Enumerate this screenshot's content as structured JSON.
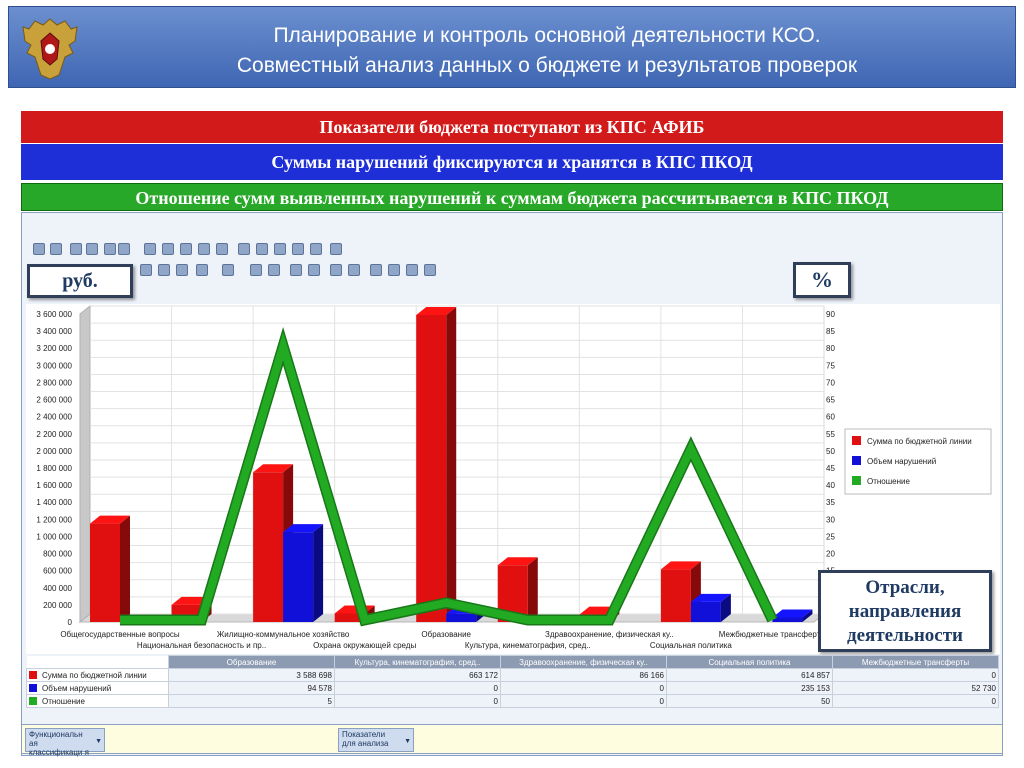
{
  "header": {
    "title_line1": "Планирование и контроль основной деятельности КСО.",
    "title_line2": "Совместный анализ данных о бюджете и результатов проверок"
  },
  "banners": [
    {
      "text": "Показатели бюджета поступают из КПС АФИБ",
      "color": "#d21a1a"
    },
    {
      "text": "Суммы нарушений фиксируются и хранятся в КПС ПКОД",
      "color": "#1f2fd8"
    },
    {
      "text": "Отношение  сумм  выявленных нарушений к суммам бюджета рассчитывается в КПС ПКОД",
      "color": "#28a828"
    }
  ],
  "callouts": {
    "left_axis_unit": "руб.",
    "right_axis_unit": "%",
    "x_axis_note_line1": "Отрасли,",
    "x_axis_note_line2": "направления",
    "x_axis_note_line3": "деятельности"
  },
  "chart_data": {
    "type": "bar",
    "categories": [
      "Общегосударственные вопросы",
      "Национальная безопасность и пр..",
      "Жилищно-коммунальное хозяйство",
      "Охрана окружающей среды",
      "Образование",
      "Культура, кинематография, сред..",
      "Здравоохранение, физическая ку..",
      "Социальная политика",
      "Межбюджетные трансферты"
    ],
    "series": [
      {
        "name": "Сумма по бюджетной линии",
        "axis": "left",
        "type": "bar",
        "color": "#e01010",
        "values": [
          1150000,
          200000,
          1750000,
          100000,
          3588698,
          663172,
          86166,
          614857,
          0
        ]
      },
      {
        "name": "Объем нарушений",
        "axis": "left",
        "type": "bar",
        "color": "#1010d8",
        "values": [
          0,
          0,
          1050000,
          0,
          94578,
          0,
          0,
          235153,
          52730
        ]
      },
      {
        "name": "Отношение",
        "axis": "right",
        "type": "line",
        "color": "#22aa22",
        "values": [
          0,
          0,
          80,
          0,
          5,
          0,
          0,
          50,
          0
        ]
      }
    ],
    "ylim_left": [
      0,
      3600000
    ],
    "ylim_right": [
      0,
      90
    ],
    "left_ticks": [
      "0",
      "200 000",
      "400 000",
      "600 000",
      "800 000",
      "1 000 000",
      "1 200 000",
      "1 400 000",
      "1 600 000",
      "1 800 000",
      "2 000 000",
      "2 200 000",
      "2 400 000",
      "2 600 000",
      "2 800 000",
      "3 000 000",
      "3 200 000",
      "3 400 000",
      "3 600 000"
    ],
    "right_ticks": [
      "15",
      "20",
      "25",
      "30",
      "35",
      "40",
      "45",
      "50",
      "55",
      "60",
      "65",
      "70",
      "75",
      "80",
      "85",
      "90"
    ],
    "legend_position": "right",
    "grid": true
  },
  "table": {
    "columns": [
      "Образование",
      "Культура, кинематография, сред..",
      "Здравоохранение, физическая ку..",
      "Социальная политика",
      "Межбюджетные трансферты"
    ],
    "rows": [
      {
        "label": "Сумма по бюджетной линии",
        "color": "#e01010",
        "values": [
          "3 588 698",
          "663 172",
          "86 166",
          "614 857",
          "0"
        ]
      },
      {
        "label": "Объем нарушений",
        "color": "#1010d8",
        "values": [
          "94 578",
          "0",
          "0",
          "235 153",
          "52 730"
        ]
      },
      {
        "label": "Отношение",
        "color": "#22aa22",
        "values": [
          "5",
          "0",
          "0",
          "50",
          "0"
        ]
      }
    ]
  },
  "footer": {
    "field1": "Функциональн ая классификаци я",
    "field2": "Показатели для анализа"
  }
}
